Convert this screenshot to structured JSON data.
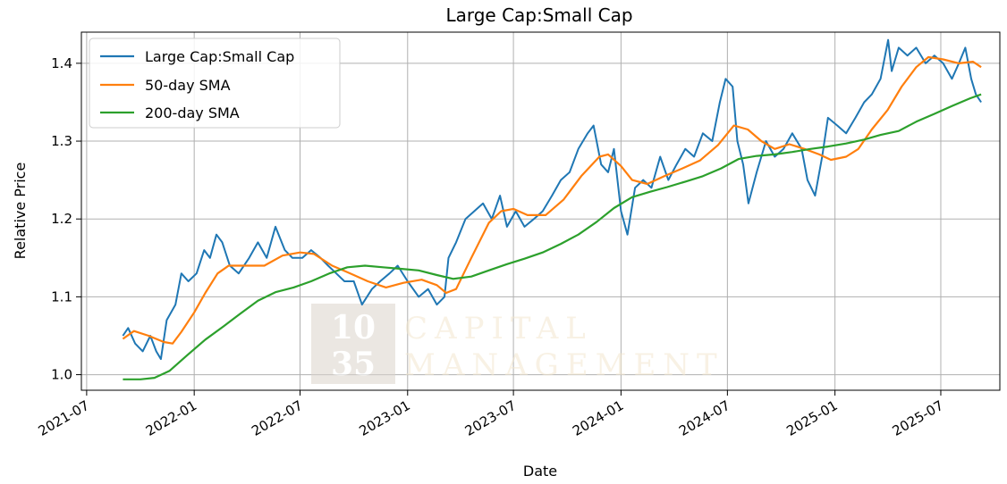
{
  "chart_data": {
    "type": "line",
    "title": "Large Cap:Small Cap",
    "xlabel": "Date",
    "ylabel": "Relative Price",
    "xlim": [
      "2021-06-22",
      "2025-10-10"
    ],
    "ylim": [
      0.98,
      1.44
    ],
    "x_ticks": [
      "2021-07",
      "2022-01",
      "2022-07",
      "2023-01",
      "2023-07",
      "2024-01",
      "2024-07",
      "2025-01",
      "2025-07"
    ],
    "y_ticks": [
      "1.0",
      "1.1",
      "1.2",
      "1.3",
      "1.4"
    ],
    "grid": true,
    "legend_position": "top-left",
    "series": [
      {
        "name": "Large Cap:Small Cap",
        "color": "#1f77b4",
        "points": [
          [
            "2021-09-01",
            1.05
          ],
          [
            "2021-09-10",
            1.06
          ],
          [
            "2021-09-22",
            1.04
          ],
          [
            "2021-10-05",
            1.03
          ],
          [
            "2021-10-18",
            1.05
          ],
          [
            "2021-10-28",
            1.03
          ],
          [
            "2021-11-05",
            1.02
          ],
          [
            "2021-11-15",
            1.07
          ],
          [
            "2021-11-30",
            1.09
          ],
          [
            "2021-12-10",
            1.13
          ],
          [
            "2021-12-22",
            1.12
          ],
          [
            "2022-01-05",
            1.13
          ],
          [
            "2022-01-18",
            1.16
          ],
          [
            "2022-01-28",
            1.15
          ],
          [
            "2022-02-08",
            1.18
          ],
          [
            "2022-02-18",
            1.17
          ],
          [
            "2022-03-03",
            1.14
          ],
          [
            "2022-03-18",
            1.13
          ],
          [
            "2022-04-05",
            1.15
          ],
          [
            "2022-04-20",
            1.17
          ],
          [
            "2022-05-05",
            1.15
          ],
          [
            "2022-05-20",
            1.19
          ],
          [
            "2022-06-05",
            1.16
          ],
          [
            "2022-06-18",
            1.15
          ],
          [
            "2022-07-05",
            1.15
          ],
          [
            "2022-07-20",
            1.16
          ],
          [
            "2022-08-05",
            1.15
          ],
          [
            "2022-08-18",
            1.14
          ],
          [
            "2022-09-01",
            1.13
          ],
          [
            "2022-09-15",
            1.12
          ],
          [
            "2022-10-01",
            1.12
          ],
          [
            "2022-10-15",
            1.09
          ],
          [
            "2022-11-01",
            1.11
          ],
          [
            "2022-11-15",
            1.12
          ],
          [
            "2022-12-01",
            1.13
          ],
          [
            "2022-12-15",
            1.14
          ],
          [
            "2023-01-01",
            1.12
          ],
          [
            "2023-01-20",
            1.1
          ],
          [
            "2023-02-05",
            1.11
          ],
          [
            "2023-02-20",
            1.09
          ],
          [
            "2023-03-05",
            1.1
          ],
          [
            "2023-03-12",
            1.15
          ],
          [
            "2023-03-25",
            1.17
          ],
          [
            "2023-04-10",
            1.2
          ],
          [
            "2023-04-25",
            1.21
          ],
          [
            "2023-05-10",
            1.22
          ],
          [
            "2023-05-25",
            1.2
          ],
          [
            "2023-06-08",
            1.23
          ],
          [
            "2023-06-20",
            1.19
          ],
          [
            "2023-07-05",
            1.21
          ],
          [
            "2023-07-20",
            1.19
          ],
          [
            "2023-08-05",
            1.2
          ],
          [
            "2023-08-20",
            1.21
          ],
          [
            "2023-09-05",
            1.23
          ],
          [
            "2023-09-20",
            1.25
          ],
          [
            "2023-10-05",
            1.26
          ],
          [
            "2023-10-20",
            1.29
          ],
          [
            "2023-11-05",
            1.31
          ],
          [
            "2023-11-15",
            1.32
          ],
          [
            "2023-11-28",
            1.27
          ],
          [
            "2023-12-10",
            1.26
          ],
          [
            "2023-12-20",
            1.29
          ],
          [
            "2024-01-01",
            1.21
          ],
          [
            "2024-01-12",
            1.18
          ],
          [
            "2024-01-25",
            1.24
          ],
          [
            "2024-02-08",
            1.25
          ],
          [
            "2024-02-22",
            1.24
          ],
          [
            "2024-03-08",
            1.28
          ],
          [
            "2024-03-22",
            1.25
          ],
          [
            "2024-04-05",
            1.27
          ],
          [
            "2024-04-20",
            1.29
          ],
          [
            "2024-05-05",
            1.28
          ],
          [
            "2024-05-20",
            1.31
          ],
          [
            "2024-06-05",
            1.3
          ],
          [
            "2024-06-18",
            1.35
          ],
          [
            "2024-06-28",
            1.38
          ],
          [
            "2024-07-10",
            1.37
          ],
          [
            "2024-07-18",
            1.3
          ],
          [
            "2024-07-28",
            1.27
          ],
          [
            "2024-08-06",
            1.22
          ],
          [
            "2024-08-20",
            1.26
          ],
          [
            "2024-09-05",
            1.3
          ],
          [
            "2024-09-20",
            1.28
          ],
          [
            "2024-10-05",
            1.29
          ],
          [
            "2024-10-20",
            1.31
          ],
          [
            "2024-11-05",
            1.29
          ],
          [
            "2024-11-15",
            1.25
          ],
          [
            "2024-11-28",
            1.23
          ],
          [
            "2024-12-10",
            1.28
          ],
          [
            "2024-12-20",
            1.33
          ],
          [
            "2025-01-05",
            1.32
          ],
          [
            "2025-01-20",
            1.31
          ],
          [
            "2025-02-05",
            1.33
          ],
          [
            "2025-02-20",
            1.35
          ],
          [
            "2025-03-05",
            1.36
          ],
          [
            "2025-03-20",
            1.38
          ],
          [
            "2025-04-02",
            1.43
          ],
          [
            "2025-04-08",
            1.39
          ],
          [
            "2025-04-20",
            1.42
          ],
          [
            "2025-05-05",
            1.41
          ],
          [
            "2025-05-20",
            1.42
          ],
          [
            "2025-06-05",
            1.4
          ],
          [
            "2025-06-20",
            1.41
          ],
          [
            "2025-07-05",
            1.4
          ],
          [
            "2025-07-20",
            1.38
          ],
          [
            "2025-08-01",
            1.4
          ],
          [
            "2025-08-12",
            1.42
          ],
          [
            "2025-08-22",
            1.38
          ],
          [
            "2025-08-30",
            1.36
          ],
          [
            "2025-09-08",
            1.35
          ]
        ]
      },
      {
        "name": "50-day SMA",
        "color": "#ff7f0e",
        "points": [
          [
            "2021-09-01",
            1.046
          ],
          [
            "2021-09-20",
            1.056
          ],
          [
            "2021-10-15",
            1.05
          ],
          [
            "2021-11-10",
            1.042
          ],
          [
            "2021-11-25",
            1.04
          ],
          [
            "2021-12-10",
            1.055
          ],
          [
            "2022-01-01",
            1.08
          ],
          [
            "2022-01-20",
            1.105
          ],
          [
            "2022-02-10",
            1.13
          ],
          [
            "2022-03-01",
            1.14
          ],
          [
            "2022-04-01",
            1.14
          ],
          [
            "2022-05-01",
            1.14
          ],
          [
            "2022-06-01",
            1.153
          ],
          [
            "2022-07-01",
            1.157
          ],
          [
            "2022-07-25",
            1.155
          ],
          [
            "2022-08-25",
            1.14
          ],
          [
            "2022-09-25",
            1.13
          ],
          [
            "2022-10-25",
            1.12
          ],
          [
            "2022-11-25",
            1.112
          ],
          [
            "2022-12-25",
            1.118
          ],
          [
            "2023-01-25",
            1.122
          ],
          [
            "2023-02-20",
            1.115
          ],
          [
            "2023-03-08",
            1.105
          ],
          [
            "2023-03-25",
            1.11
          ],
          [
            "2023-04-20",
            1.15
          ],
          [
            "2023-05-20",
            1.195
          ],
          [
            "2023-06-10",
            1.21
          ],
          [
            "2023-07-01",
            1.213
          ],
          [
            "2023-07-25",
            1.205
          ],
          [
            "2023-08-25",
            1.205
          ],
          [
            "2023-09-25",
            1.225
          ],
          [
            "2023-10-25",
            1.255
          ],
          [
            "2023-11-25",
            1.28
          ],
          [
            "2023-12-10",
            1.283
          ],
          [
            "2024-01-01",
            1.268
          ],
          [
            "2024-01-20",
            1.25
          ],
          [
            "2024-02-15",
            1.245
          ],
          [
            "2024-03-15",
            1.255
          ],
          [
            "2024-04-15",
            1.265
          ],
          [
            "2024-05-15",
            1.275
          ],
          [
            "2024-06-15",
            1.295
          ],
          [
            "2024-07-12",
            1.32
          ],
          [
            "2024-08-05",
            1.315
          ],
          [
            "2024-08-28",
            1.3
          ],
          [
            "2024-09-20",
            1.29
          ],
          [
            "2024-10-15",
            1.296
          ],
          [
            "2024-11-10",
            1.29
          ],
          [
            "2024-12-05",
            1.283
          ],
          [
            "2024-12-25",
            1.276
          ],
          [
            "2025-01-20",
            1.28
          ],
          [
            "2025-02-10",
            1.29
          ],
          [
            "2025-03-05",
            1.315
          ],
          [
            "2025-04-01",
            1.34
          ],
          [
            "2025-04-25",
            1.37
          ],
          [
            "2025-05-20",
            1.395
          ],
          [
            "2025-06-10",
            1.408
          ],
          [
            "2025-07-05",
            1.405
          ],
          [
            "2025-08-01",
            1.4
          ],
          [
            "2025-08-25",
            1.402
          ],
          [
            "2025-09-08",
            1.395
          ]
        ]
      },
      {
        "name": "200-day SMA",
        "color": "#2ca02c",
        "points": [
          [
            "2021-09-01",
            0.994
          ],
          [
            "2021-10-01",
            0.994
          ],
          [
            "2021-10-25",
            0.996
          ],
          [
            "2021-11-20",
            1.005
          ],
          [
            "2021-12-20",
            1.025
          ],
          [
            "2022-01-20",
            1.045
          ],
          [
            "2022-02-20",
            1.062
          ],
          [
            "2022-03-20",
            1.078
          ],
          [
            "2022-04-20",
            1.095
          ],
          [
            "2022-05-20",
            1.106
          ],
          [
            "2022-06-20",
            1.112
          ],
          [
            "2022-07-20",
            1.12
          ],
          [
            "2022-08-20",
            1.13
          ],
          [
            "2022-09-20",
            1.138
          ],
          [
            "2022-10-20",
            1.14
          ],
          [
            "2022-11-20",
            1.138
          ],
          [
            "2022-12-20",
            1.136
          ],
          [
            "2023-01-20",
            1.134
          ],
          [
            "2023-02-20",
            1.128
          ],
          [
            "2023-03-20",
            1.123
          ],
          [
            "2023-04-20",
            1.126
          ],
          [
            "2023-05-20",
            1.134
          ],
          [
            "2023-06-20",
            1.142
          ],
          [
            "2023-07-20",
            1.149
          ],
          [
            "2023-08-20",
            1.157
          ],
          [
            "2023-09-20",
            1.168
          ],
          [
            "2023-10-20",
            1.18
          ],
          [
            "2023-11-20",
            1.196
          ],
          [
            "2023-12-20",
            1.214
          ],
          [
            "2024-01-20",
            1.228
          ],
          [
            "2024-02-20",
            1.235
          ],
          [
            "2024-03-20",
            1.241
          ],
          [
            "2024-04-20",
            1.248
          ],
          [
            "2024-05-20",
            1.255
          ],
          [
            "2024-06-20",
            1.265
          ],
          [
            "2024-07-20",
            1.277
          ],
          [
            "2024-08-20",
            1.281
          ],
          [
            "2024-09-20",
            1.283
          ],
          [
            "2024-10-20",
            1.286
          ],
          [
            "2024-11-20",
            1.29
          ],
          [
            "2024-12-20",
            1.293
          ],
          [
            "2025-01-20",
            1.297
          ],
          [
            "2025-02-20",
            1.302
          ],
          [
            "2025-03-20",
            1.308
          ],
          [
            "2025-04-20",
            1.313
          ],
          [
            "2025-05-20",
            1.325
          ],
          [
            "2025-06-20",
            1.335
          ],
          [
            "2025-07-20",
            1.345
          ],
          [
            "2025-08-20",
            1.355
          ],
          [
            "2025-09-08",
            1.36
          ]
        ]
      }
    ]
  },
  "watermark": {
    "line1_number": "10",
    "line2_number": "35",
    "line1_word": "CAPITAL",
    "line2_word": "MANAGEMENT"
  }
}
